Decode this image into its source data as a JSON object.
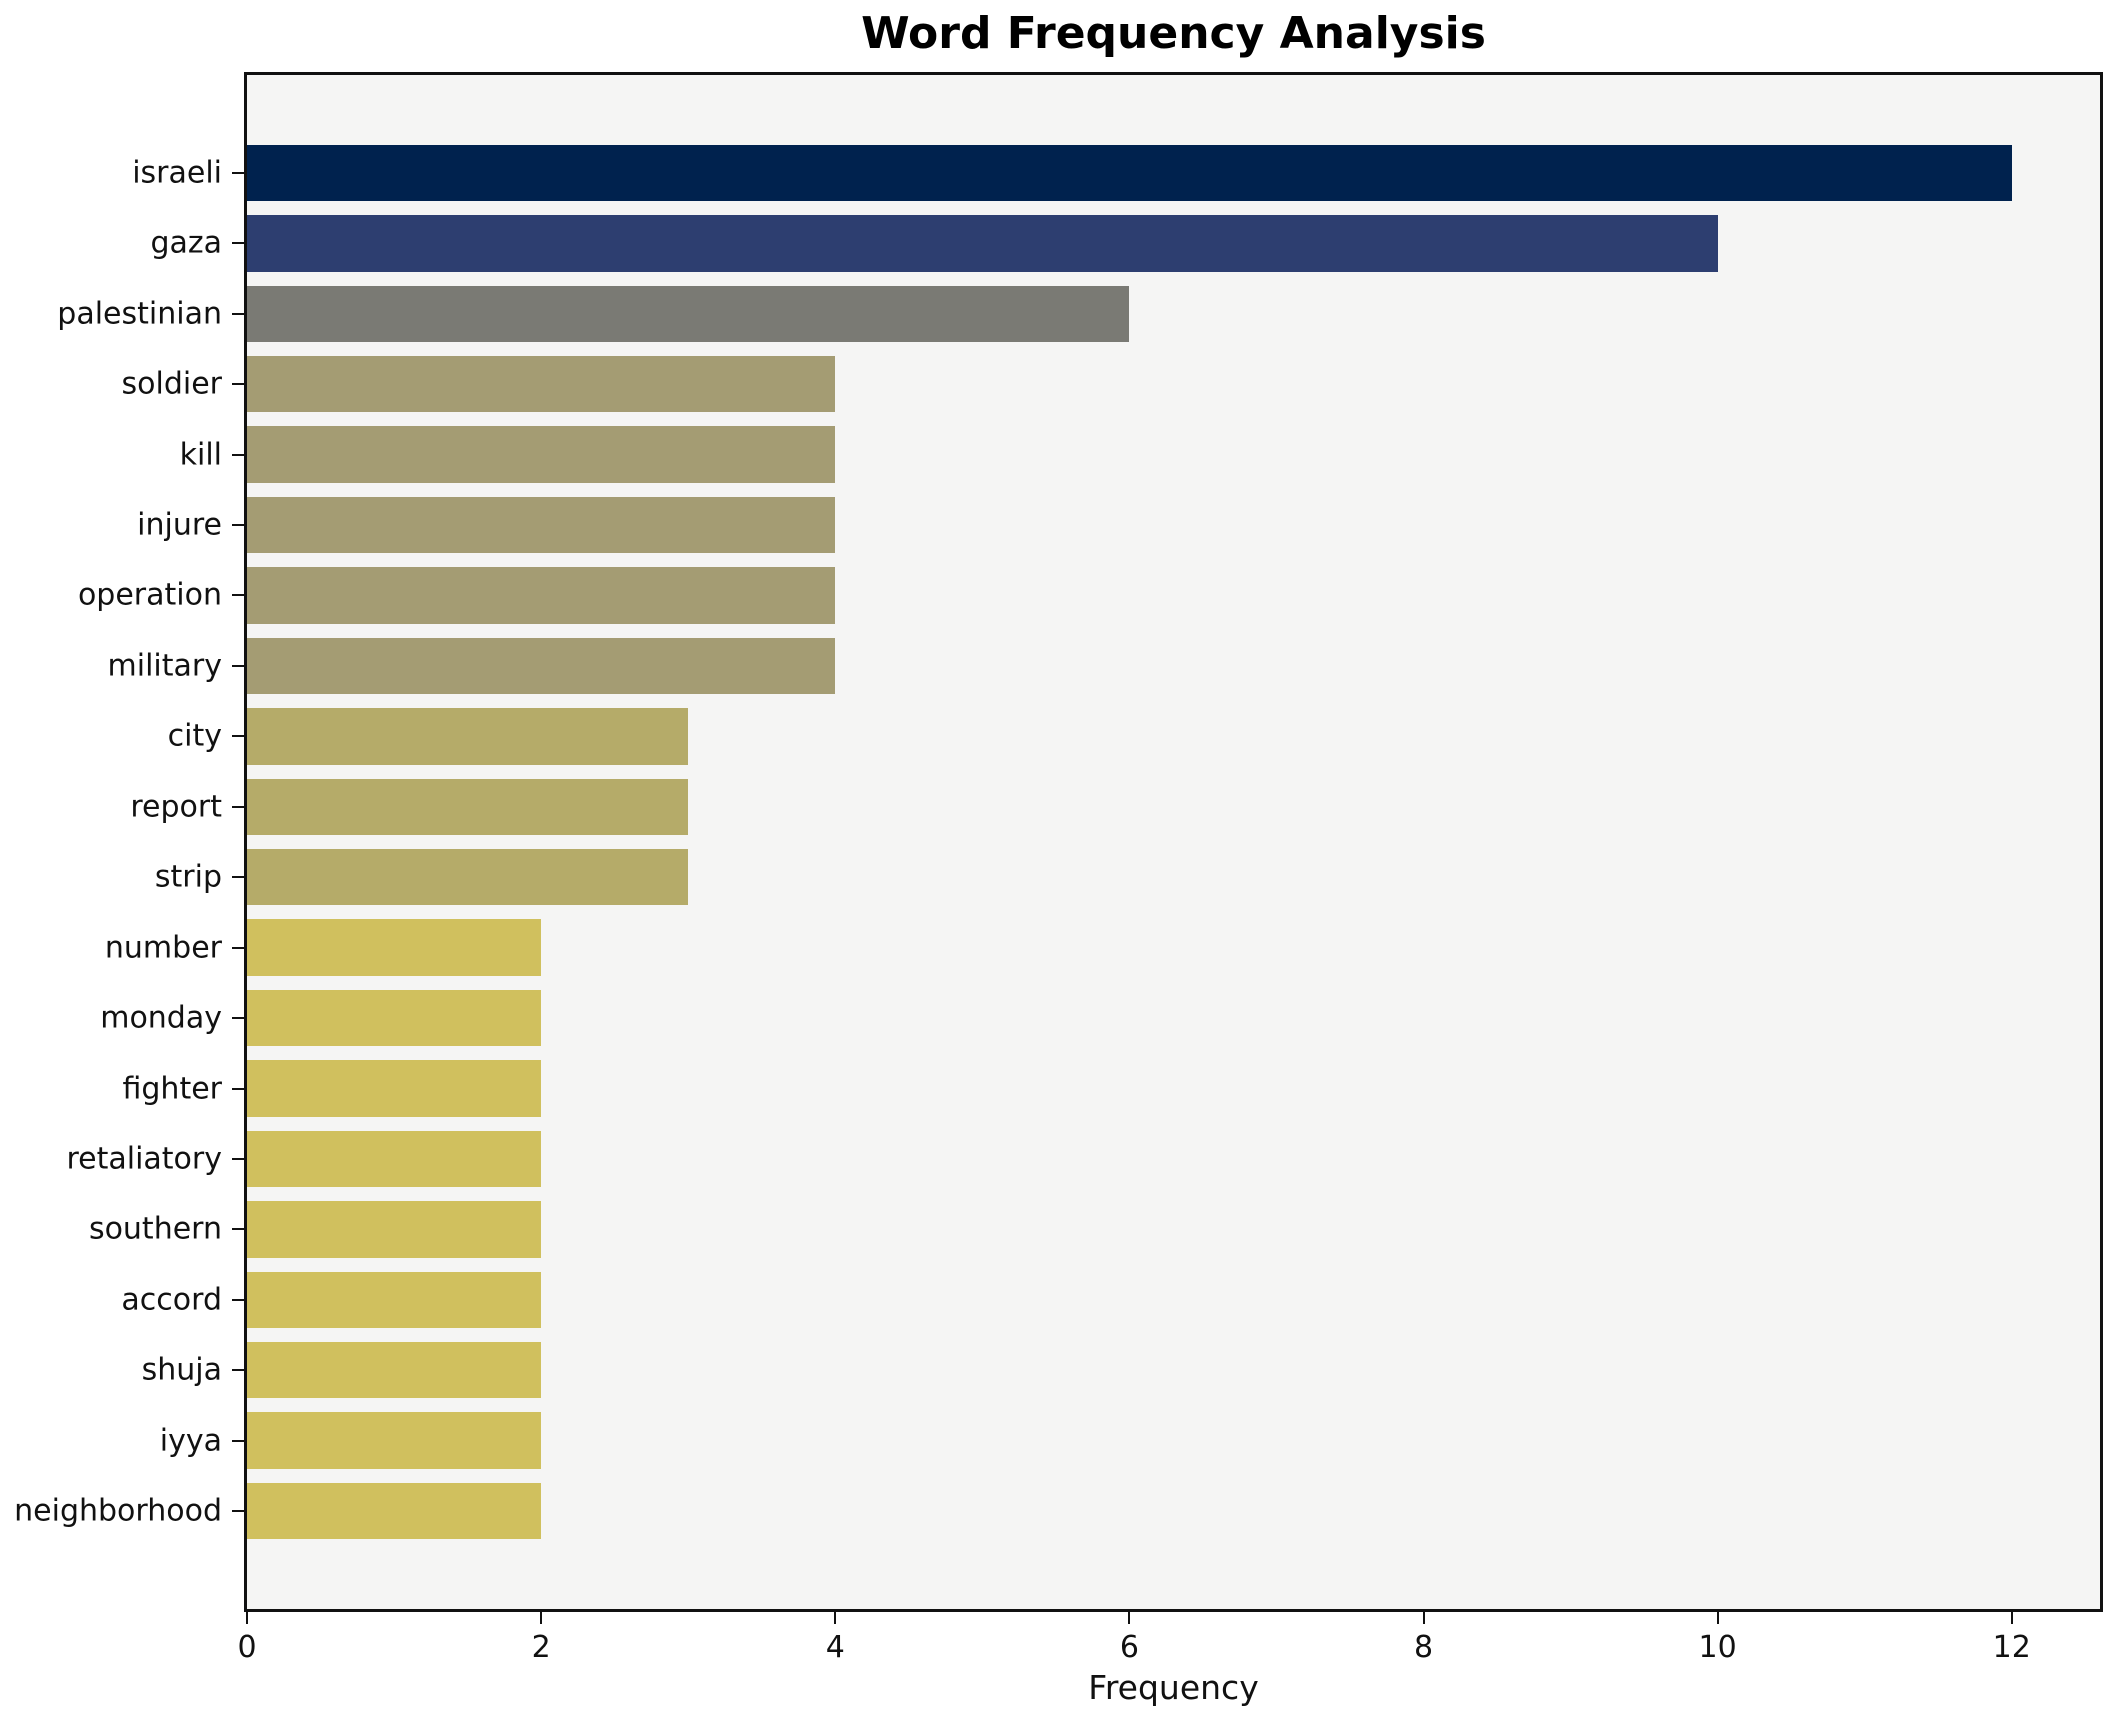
{
  "chart_data": {
    "type": "bar",
    "orientation": "horizontal",
    "title": "Word Frequency Analysis",
    "xlabel": "Frequency",
    "ylabel": "",
    "categories": [
      "israeli",
      "gaza",
      "palestinian",
      "soldier",
      "kill",
      "injure",
      "operation",
      "military",
      "city",
      "report",
      "strip",
      "number",
      "monday",
      "fighter",
      "retaliatory",
      "southern",
      "accord",
      "shuja",
      "iyya",
      "neighborhood"
    ],
    "values": [
      12,
      10,
      6,
      4,
      4,
      4,
      4,
      4,
      3,
      3,
      3,
      2,
      2,
      2,
      2,
      2,
      2,
      2,
      2,
      2
    ],
    "bar_colors": [
      "#00224e",
      "#2d3e70",
      "#7a7a74",
      "#a49c73",
      "#a49c73",
      "#a49c73",
      "#a49c73",
      "#a49c73",
      "#b5ab69",
      "#b5ab69",
      "#b5ab69",
      "#d0c05e",
      "#d0c05e",
      "#d0c05e",
      "#d0c05e",
      "#d0c05e",
      "#d0c05e",
      "#d0c05e",
      "#d0c05e",
      "#d0c05e"
    ],
    "xlim": [
      0,
      12.6
    ],
    "xticks": [
      0,
      2,
      4,
      6,
      8,
      10,
      12
    ],
    "grid": false,
    "legend_position": "none",
    "plot_bg": "#f5f5f4",
    "fig_bg": "#ffffff",
    "bar_relative_height": 0.8
  }
}
